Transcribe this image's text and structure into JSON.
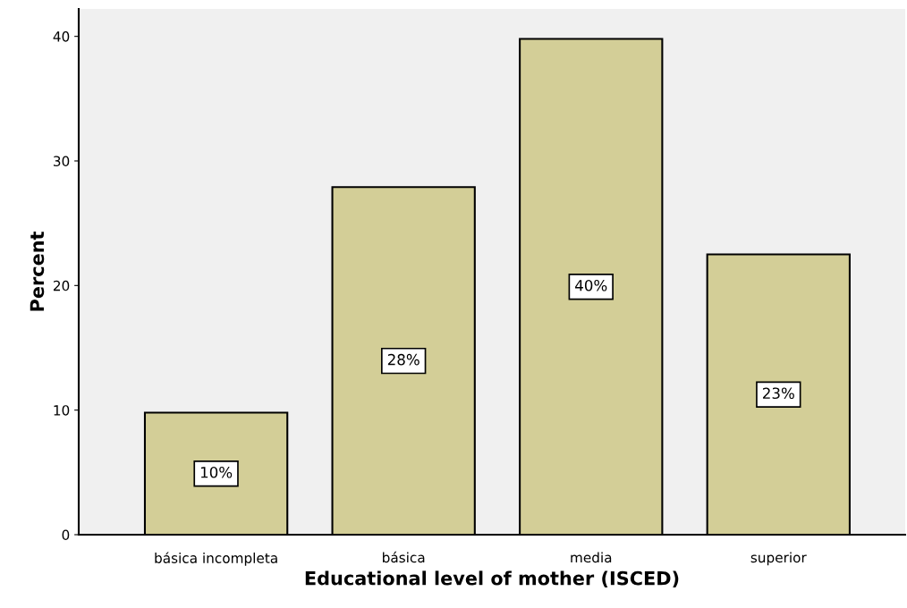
{
  "chart_data": {
    "type": "bar",
    "xlabel": "Educational level of mother (ISCED)",
    "ylabel": "Percent",
    "categories": [
      "básica incompleta",
      "básica",
      "media",
      "superior"
    ],
    "values": [
      9.8,
      27.9,
      39.8,
      22.5
    ],
    "value_labels": [
      "10%",
      "28%",
      "40%",
      "23%"
    ],
    "color": "#d3ce97",
    "ylim": [
      0,
      42.2
    ],
    "yticks": [
      0,
      10,
      20,
      30,
      40
    ],
    "grid": false
  }
}
